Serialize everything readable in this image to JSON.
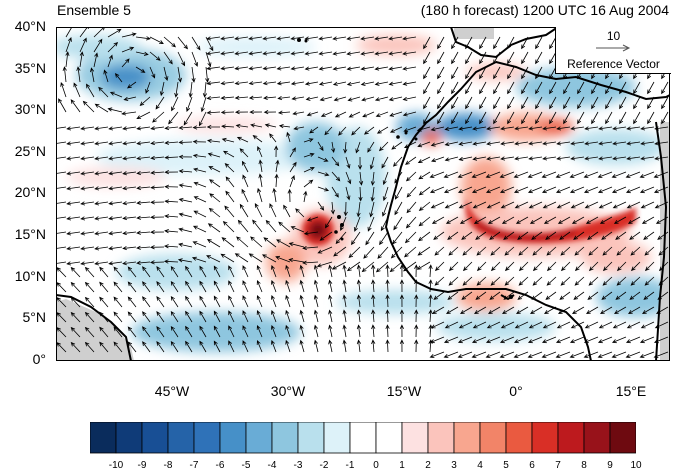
{
  "title": {
    "left": "Ensemble 5",
    "right": "(180 h forecast) 1200 UTC 16 Aug 2004"
  },
  "map": {
    "lat_ticks": [
      "40°N",
      "35°N",
      "30°N",
      "25°N",
      "20°N",
      "15°N",
      "10°N",
      "5°N",
      "0°"
    ],
    "lon_ticks": [
      "45°W",
      "30°W",
      "15°W",
      "0°",
      "15°E"
    ]
  },
  "reference_vector": {
    "magnitude": "10",
    "label": "Reference Vector"
  },
  "colorbar": {
    "labels": [
      "-10",
      "-9",
      "-8",
      "-7",
      "-6",
      "-5",
      "-4",
      "-3",
      "-2",
      "-1",
      "0",
      "1",
      "2",
      "3",
      "4",
      "5",
      "6",
      "7",
      "8",
      "9",
      "10"
    ],
    "colors": [
      "#0a2c5c",
      "#0f3b78",
      "#184f95",
      "#2563a8",
      "#2f72b8",
      "#4690c8",
      "#69acd6",
      "#8ec6df",
      "#b9e0ed",
      "#ddf2f9",
      "#ffffff",
      "#ffffff",
      "#fde1e1",
      "#fbc4bc",
      "#f8a68f",
      "#f28468",
      "#ea5a40",
      "#d92f26",
      "#bd1a1e",
      "#98121a",
      "#6e0a10"
    ]
  },
  "colors": {
    "land_boundary": "#000000",
    "warm_anomaly": "#d92f26",
    "cool_anomaly": "#4690c8",
    "missing": "#cfcfcf"
  }
}
